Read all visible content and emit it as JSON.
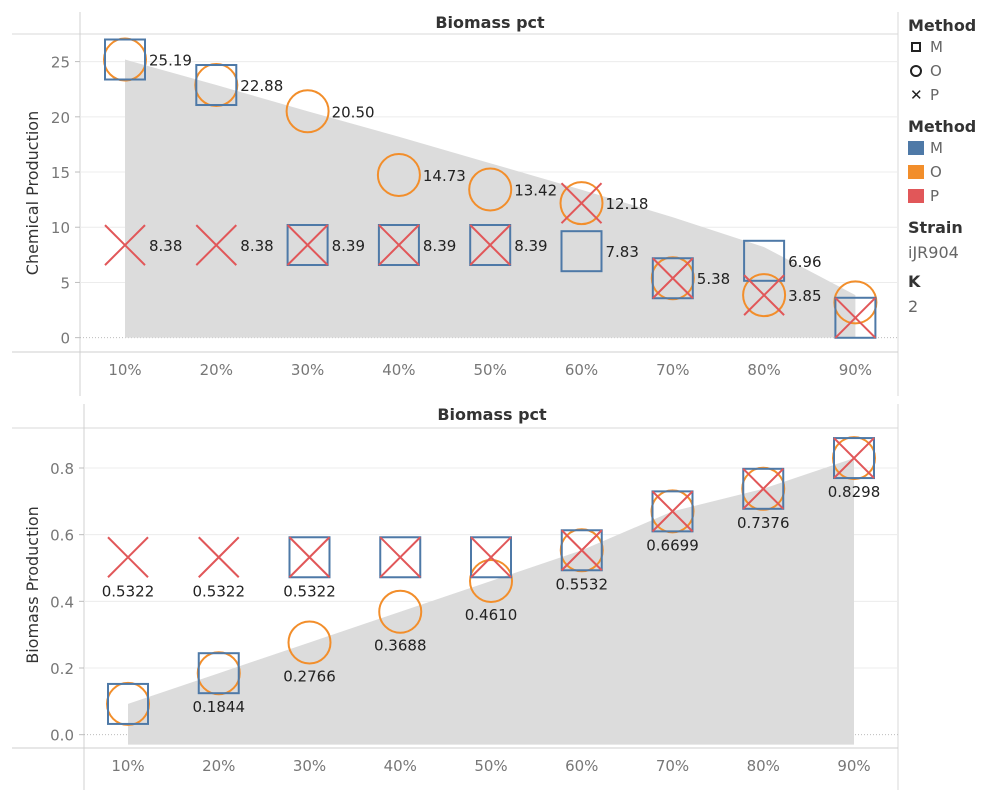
{
  "colors": {
    "M": "#4E79A7",
    "O": "#F28E2B",
    "P": "#E15759",
    "band": "#DCDCDC"
  },
  "legend": {
    "shape_title": "Method",
    "shape_items": [
      {
        "label": "M",
        "shape": "square"
      },
      {
        "label": "O",
        "shape": "circle"
      },
      {
        "label": "P",
        "shape": "x"
      }
    ],
    "color_title": "Method",
    "color_items": [
      {
        "label": "M",
        "color": "#4E79A7"
      },
      {
        "label": "O",
        "color": "#F28E2B"
      },
      {
        "label": "P",
        "color": "#E15759"
      }
    ],
    "strain_title": "Strain",
    "strain_value": "iJR904",
    "k_title": "K",
    "k_value": "2"
  },
  "chart_data": [
    {
      "type": "scatter",
      "title": "Biomass pct",
      "ylabel": "Chemical Production",
      "categories": [
        "10%",
        "20%",
        "30%",
        "40%",
        "50%",
        "60%",
        "70%",
        "80%",
        "90%"
      ],
      "ylim": [
        -1.3,
        27.5
      ],
      "yticks": [
        "0",
        "5",
        "10",
        "15",
        "20",
        "25"
      ],
      "band": {
        "upper": [
          25.19,
          22.88,
          20.5,
          18.2,
          15.8,
          13.4,
          10.9,
          8.2,
          3.85
        ],
        "lower": 0
      },
      "series": [
        {
          "name": "M",
          "values": [
            25.19,
            22.88,
            8.39,
            8.39,
            8.39,
            7.83,
            5.38,
            6.96,
            1.8
          ]
        },
        {
          "name": "O",
          "values": [
            25.19,
            22.88,
            20.5,
            14.73,
            13.42,
            12.18,
            5.38,
            3.85,
            3.2
          ]
        },
        {
          "name": "P",
          "values": [
            8.38,
            8.38,
            8.39,
            8.39,
            8.39,
            12.18,
            5.38,
            3.85,
            1.8
          ]
        }
      ],
      "labels": [
        {
          "cat": 0,
          "y": 25.19,
          "text": "25.19",
          "pos": "right"
        },
        {
          "cat": 1,
          "y": 22.88,
          "text": "22.88",
          "pos": "right"
        },
        {
          "cat": 2,
          "y": 20.5,
          "text": "20.50",
          "pos": "right"
        },
        {
          "cat": 3,
          "y": 14.73,
          "text": "14.73",
          "pos": "right"
        },
        {
          "cat": 4,
          "y": 13.42,
          "text": "13.42",
          "pos": "right"
        },
        {
          "cat": 5,
          "y": 12.18,
          "text": "12.18",
          "pos": "right"
        },
        {
          "cat": 0,
          "y": 8.38,
          "text": "8.38",
          "pos": "right"
        },
        {
          "cat": 1,
          "y": 8.38,
          "text": "8.38",
          "pos": "right"
        },
        {
          "cat": 2,
          "y": 8.39,
          "text": "8.39",
          "pos": "right"
        },
        {
          "cat": 3,
          "y": 8.39,
          "text": "8.39",
          "pos": "right"
        },
        {
          "cat": 4,
          "y": 8.39,
          "text": "8.39",
          "pos": "right"
        },
        {
          "cat": 5,
          "y": 7.83,
          "text": "7.83",
          "pos": "right"
        },
        {
          "cat": 6,
          "y": 5.38,
          "text": "5.38",
          "pos": "right"
        },
        {
          "cat": 7,
          "y": 6.96,
          "text": "6.96",
          "pos": "right"
        },
        {
          "cat": 7,
          "y": 3.85,
          "text": "3.85",
          "pos": "right"
        }
      ]
    },
    {
      "type": "scatter",
      "title": "Biomass pct",
      "ylabel": "Biomass Production",
      "categories": [
        "10%",
        "20%",
        "30%",
        "40%",
        "50%",
        "60%",
        "70%",
        "80%",
        "90%"
      ],
      "ylim": [
        -0.04,
        0.92
      ],
      "yticks": [
        "0.0",
        "0.2",
        "0.4",
        "0.6",
        "0.8"
      ],
      "band": {
        "upper": [
          0.0922,
          0.1844,
          0.2766,
          0.3688,
          0.461,
          0.5532,
          0.6699,
          0.7376,
          0.8298
        ],
        "lower": -0.03
      },
      "series": [
        {
          "name": "M",
          "values": [
            0.0922,
            0.1844,
            0.5322,
            0.5322,
            0.5322,
            0.5532,
            0.6699,
            0.7376,
            0.8298
          ]
        },
        {
          "name": "O",
          "values": [
            0.0922,
            0.1844,
            0.2766,
            0.3688,
            0.461,
            0.5532,
            0.6699,
            0.7376,
            0.8298
          ]
        },
        {
          "name": "P",
          "values": [
            0.5322,
            0.5322,
            0.5322,
            0.5322,
            0.5322,
            0.5532,
            0.6699,
            0.7376,
            0.8298
          ]
        }
      ],
      "labels": [
        {
          "cat": 0,
          "y": 0.5322,
          "text": "0.5322",
          "pos": "below"
        },
        {
          "cat": 1,
          "y": 0.5322,
          "text": "0.5322",
          "pos": "below"
        },
        {
          "cat": 2,
          "y": 0.5322,
          "text": "0.5322",
          "pos": "below"
        },
        {
          "cat": 1,
          "y": 0.1844,
          "text": "0.1844",
          "pos": "below"
        },
        {
          "cat": 2,
          "y": 0.2766,
          "text": "0.2766",
          "pos": "below"
        },
        {
          "cat": 3,
          "y": 0.3688,
          "text": "0.3688",
          "pos": "below"
        },
        {
          "cat": 4,
          "y": 0.461,
          "text": "0.4610",
          "pos": "below"
        },
        {
          "cat": 5,
          "y": 0.5532,
          "text": "0.5532",
          "pos": "below"
        },
        {
          "cat": 6,
          "y": 0.6699,
          "text": "0.6699",
          "pos": "below"
        },
        {
          "cat": 7,
          "y": 0.7376,
          "text": "0.7376",
          "pos": "below"
        },
        {
          "cat": 8,
          "y": 0.8298,
          "text": "0.8298",
          "pos": "below"
        }
      ]
    }
  ]
}
